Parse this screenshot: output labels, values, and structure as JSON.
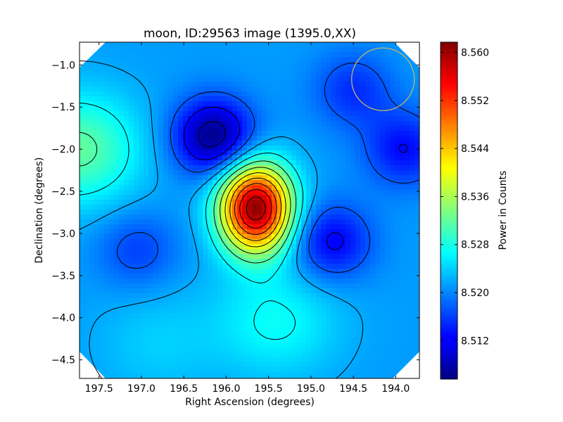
{
  "chart_data": {
    "type": "heatmap",
    "title": "moon, ID:29563 image (1395.0,XX)",
    "xlabel": "Right Ascension (degrees)",
    "ylabel": "Declination (degrees)",
    "xlim": [
      197.73,
      193.72
    ],
    "ylim": [
      -4.72,
      -0.73
    ],
    "x_ticks": [
      197.5,
      197.0,
      196.5,
      196.0,
      195.5,
      195.0,
      194.5,
      194.0
    ],
    "x_tick_labels": [
      "197.5",
      "197.0",
      "196.5",
      "196.0",
      "195.5",
      "195.0",
      "194.5",
      "194.0"
    ],
    "y_ticks": [
      -1.0,
      -1.5,
      -2.0,
      -2.5,
      -3.0,
      -3.5,
      -4.0,
      -4.5
    ],
    "y_tick_labels": [
      "−1.0",
      "−1.5",
      "−2.0",
      "−2.5",
      "−3.0",
      "−3.5",
      "−4.0",
      "−4.5"
    ],
    "colormap": "jet",
    "colorbar": {
      "label": "Power in Counts",
      "range": [
        8.5056,
        8.5617
      ],
      "ticks": [
        8.512,
        8.52,
        8.528,
        8.536,
        8.544,
        8.552,
        8.56
      ],
      "tick_labels": [
        "8.512",
        "8.520",
        "8.528",
        "8.536",
        "8.544",
        "8.552",
        "8.560"
      ]
    },
    "features": [
      {
        "kind": "peak",
        "ra": 195.65,
        "dec": -2.7,
        "value": 8.561
      },
      {
        "kind": "trough",
        "ra": 196.15,
        "dec": -1.85,
        "value": 8.506
      },
      {
        "kind": "trough",
        "ra": 194.75,
        "dec": -3.1,
        "value": 8.512
      },
      {
        "kind": "trough",
        "ra": 193.9,
        "dec": -2.0,
        "value": 8.513
      },
      {
        "kind": "trough",
        "ra": 197.05,
        "dec": -3.2,
        "value": 8.516
      },
      {
        "kind": "trough",
        "ra": 194.5,
        "dec": -1.3,
        "value": 8.515
      },
      {
        "kind": "high",
        "ra": 197.75,
        "dec": -2.0,
        "value": 8.532
      },
      {
        "kind": "high",
        "ra": 195.4,
        "dec": -4.05,
        "value": 8.527
      },
      {
        "kind": "high",
        "ra": 196.8,
        "dec": -4.3,
        "value": 8.524
      }
    ],
    "beam_circle": {
      "ra": 194.15,
      "dec": -1.17,
      "radius_deg": 0.37,
      "color": "#bdb76b"
    },
    "contour_color": "#000000"
  }
}
